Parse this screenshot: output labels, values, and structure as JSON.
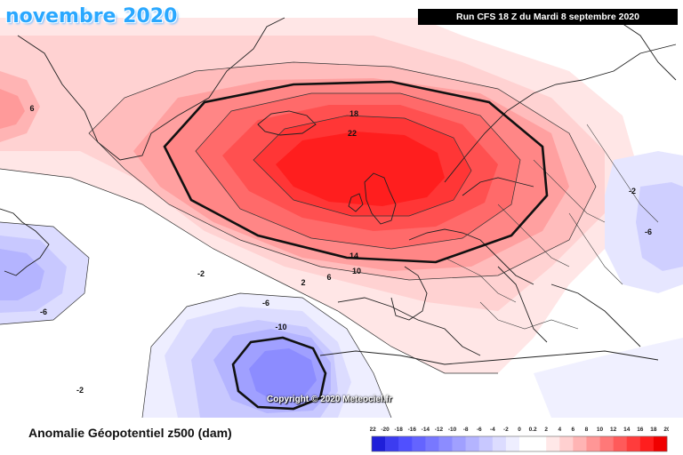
{
  "header": {
    "title": "novembre 2020",
    "run_info": "Run CFS 18 Z du Mardi 8 septembre 2020"
  },
  "map": {
    "copyright": "Copyright © 2020 Meteociel.fr",
    "contour_labels": [
      "18",
      "22",
      "14",
      "10",
      "6",
      "2",
      "-2",
      "-6",
      "-10",
      "6",
      "-6",
      "-2",
      "-6",
      "-2"
    ]
  },
  "footer": {
    "variable_label": "Anomalie Géopotentiel z500 (dam)"
  },
  "legend": {
    "ticks": [
      "-22",
      "-20",
      "-18",
      "-16",
      "-14",
      "-12",
      "-10",
      "-8",
      "-6",
      "-4",
      "-2",
      "0",
      "0.2",
      "2",
      "4",
      "6",
      "8",
      "10",
      "12",
      "14",
      "16",
      "18",
      "20"
    ],
    "colors": [
      "#1f1fd9",
      "#3c3cf0",
      "#5050ff",
      "#6464ff",
      "#7878ff",
      "#8c8cff",
      "#a0a0ff",
      "#b4b4ff",
      "#c8c8ff",
      "#dcdcff",
      "#eeeeff",
      "#ffffff",
      "#ffffff",
      "#ffe8e8",
      "#ffd0d0",
      "#ffb4b4",
      "#ff9696",
      "#ff7878",
      "#ff5a5a",
      "#ff3c3c",
      "#ff1e1e",
      "#f00000"
    ]
  }
}
